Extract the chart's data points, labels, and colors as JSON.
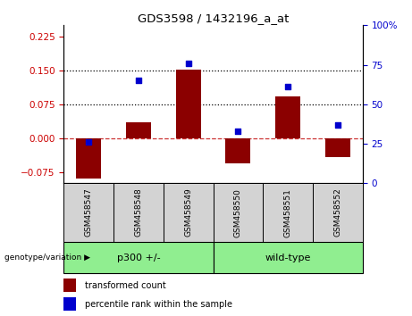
{
  "title": "GDS3598 / 1432196_a_at",
  "samples": [
    "GSM458547",
    "GSM458548",
    "GSM458549",
    "GSM458550",
    "GSM458551",
    "GSM458552"
  ],
  "bar_values": [
    -0.09,
    0.035,
    0.152,
    -0.055,
    0.092,
    -0.042
  ],
  "dot_values": [
    26,
    65,
    76,
    33,
    61,
    37
  ],
  "group_colors": [
    "#90EE90",
    "#90EE90"
  ],
  "bar_color": "#8B0000",
  "dot_color": "#0000CD",
  "ylim_left": [
    -0.1,
    0.25
  ],
  "ylim_right": [
    0,
    100
  ],
  "yticks_left": [
    -0.075,
    0,
    0.075,
    0.15,
    0.225
  ],
  "yticks_right": [
    0,
    25,
    50,
    75,
    100
  ],
  "hlines": [
    0.075,
    0.15
  ],
  "zero_line": 0.0,
  "left_tick_color": "#cc0000",
  "right_tick_color": "#0000cd",
  "legend_items": [
    "transformed count",
    "percentile rank within the sample"
  ],
  "genotype_label": "genotype/variation",
  "group1_label": "p300 +/-",
  "group2_label": "wild-type",
  "sample_box_color": "#d3d3d3",
  "group_box_color": "#90EE90"
}
